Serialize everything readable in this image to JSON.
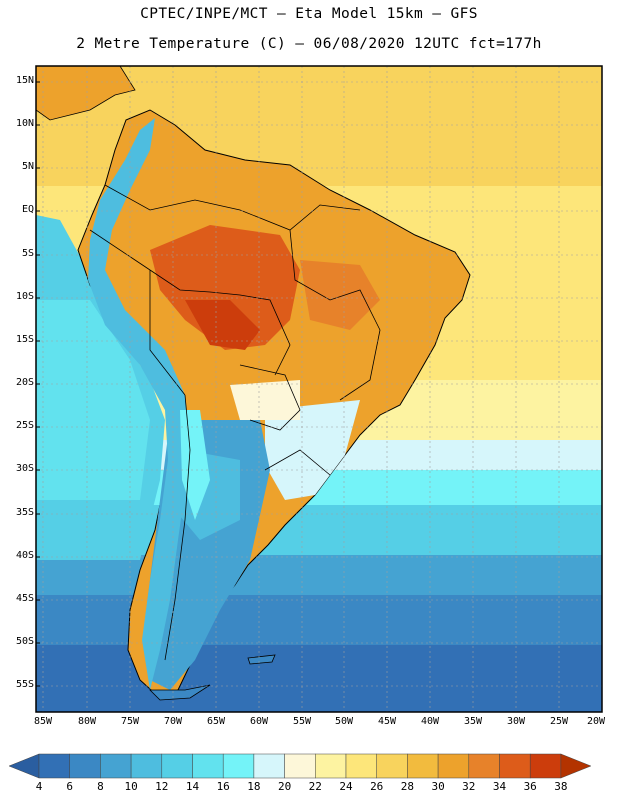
{
  "header": {
    "line1": "CPTEC/INPE/MCT –  Eta Model 15km – GFS",
    "line2": "2 Metre Temperature (C) – 06/08/2020 12UTC fct=177h"
  },
  "axes": {
    "lat_labels": [
      "15N",
      "10N",
      "5N",
      "EQ",
      "5S",
      "10S",
      "15S",
      "20S",
      "25S",
      "30S",
      "35S",
      "40S",
      "45S",
      "50S",
      "55S"
    ],
    "lon_labels": [
      "85W",
      "80W",
      "75W",
      "70W",
      "65W",
      "60W",
      "55W",
      "50W",
      "45W",
      "40W",
      "35W",
      "30W",
      "25W",
      "20W"
    ]
  },
  "colorbar": {
    "ticks": [
      "4",
      "6",
      "8",
      "10",
      "12",
      "14",
      "16",
      "18",
      "20",
      "22",
      "24",
      "26",
      "28",
      "30",
      "32",
      "34",
      "36",
      "38"
    ],
    "colors": [
      "#2a5ea0",
      "#3270b5",
      "#3b88c4",
      "#45a3d2",
      "#4ebddf",
      "#55cfe6",
      "#62e2ee",
      "#74f3f8",
      "#d6f6fb",
      "#fdf7d9",
      "#fdf3a1",
      "#fde67a",
      "#f8d35d",
      "#f2bb3e",
      "#eda22c",
      "#e7822a",
      "#dd5c1a",
      "#cc3d0c",
      "#b33300"
    ]
  },
  "colors": {
    "land_line": "#000000",
    "grid_line": "#a0a0a0"
  }
}
